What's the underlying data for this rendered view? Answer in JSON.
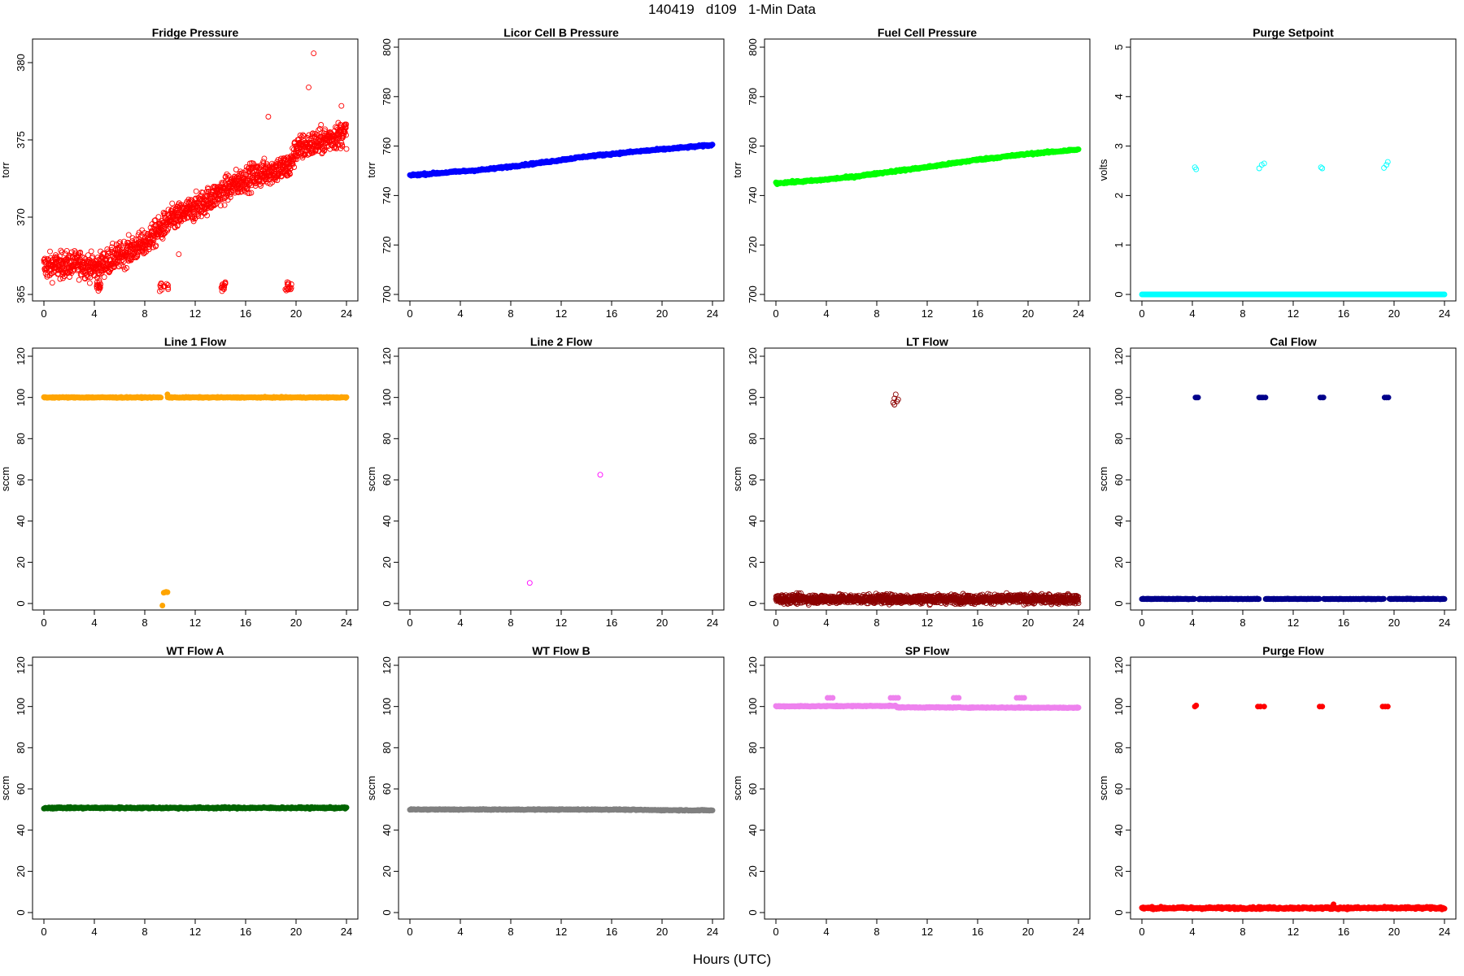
{
  "title": "140419   d109   1-Min Data",
  "xlabel": "Hours (UTC)",
  "chart_data": [
    {
      "type": "scatter",
      "title": "Fridge Pressure",
      "ylabel": "torr",
      "color": "#ff0000",
      "filled": false,
      "xlim": [
        0,
        24
      ],
      "ylim": [
        365,
        381
      ],
      "xticks": [
        0,
        4,
        8,
        12,
        16,
        20,
        24
      ],
      "yticks": [
        365,
        370,
        375,
        380
      ],
      "trend": [
        [
          0,
          366.8
        ],
        [
          3,
          367.0
        ],
        [
          4,
          366.7
        ],
        [
          6,
          367.5
        ],
        [
          8,
          368.3
        ],
        [
          10,
          369.8
        ],
        [
          12,
          370.6
        ],
        [
          14,
          371.6
        ],
        [
          16,
          372.5
        ],
        [
          18,
          373.0
        ],
        [
          19.5,
          373.3
        ],
        [
          20,
          374.4
        ],
        [
          22,
          374.9
        ],
        [
          24,
          375.5
        ]
      ],
      "spread": 1.1,
      "bursts": [
        {
          "x": [
            4.1,
            4.5
          ],
          "y": [
            365.2,
            365.8
          ]
        },
        {
          "x": [
            9.1,
            9.9
          ],
          "y": [
            365.2,
            365.8
          ]
        },
        {
          "x": [
            14.0,
            14.4
          ],
          "y": [
            365.2,
            365.8
          ]
        },
        {
          "x": [
            19.1,
            19.7
          ],
          "y": [
            365.2,
            365.8
          ]
        }
      ],
      "outliers": [
        [
          21.4,
          380.6
        ],
        [
          21.0,
          378.4
        ],
        [
          17.8,
          376.5
        ],
        [
          10.7,
          367.6
        ],
        [
          23.6,
          377.2
        ]
      ]
    },
    {
      "type": "scatter",
      "title": "Licor Cell B Pressure",
      "ylabel": "torr",
      "color": "#0000ff",
      "filled": true,
      "xlim": [
        0,
        24
      ],
      "ylim": [
        700,
        800
      ],
      "xticks": [
        0,
        4,
        8,
        12,
        16,
        20,
        24
      ],
      "yticks": [
        700,
        720,
        740,
        760,
        780,
        800
      ],
      "trend": [
        [
          0,
          748.2
        ],
        [
          6,
          750.5
        ],
        [
          10,
          753.0
        ],
        [
          14,
          755.8
        ],
        [
          18,
          757.8
        ],
        [
          24,
          760.4
        ]
      ],
      "spread": 0.5
    },
    {
      "type": "scatter",
      "title": "Fuel Cell Pressure",
      "ylabel": "torr",
      "color": "#00ff00",
      "filled": true,
      "xlim": [
        0,
        24
      ],
      "ylim": [
        700,
        800
      ],
      "xticks": [
        0,
        4,
        8,
        12,
        16,
        20,
        24
      ],
      "yticks": [
        700,
        720,
        740,
        760,
        780,
        800
      ],
      "trend": [
        [
          0,
          745.0
        ],
        [
          3,
          746.0
        ],
        [
          6,
          747.5
        ],
        [
          9,
          749.6
        ],
        [
          12,
          751.5
        ],
        [
          16,
          754.5
        ],
        [
          20,
          756.8
        ],
        [
          24,
          758.6
        ]
      ],
      "spread": 0.5
    },
    {
      "type": "scatter",
      "title": "Purge Setpoint",
      "ylabel": "volts",
      "color": "#00ffff",
      "filled": false,
      "xlim": [
        0,
        24
      ],
      "ylim": [
        0,
        5
      ],
      "xticks": [
        0,
        4,
        8,
        12,
        16,
        20,
        24
      ],
      "yticks": [
        0,
        1,
        2,
        3,
        4,
        5
      ],
      "baseline": 0.0,
      "spread": 0.0,
      "clusters": [
        [
          4.2,
          2.57
        ],
        [
          4.3,
          2.53
        ],
        [
          9.3,
          2.55
        ],
        [
          9.5,
          2.62
        ],
        [
          9.7,
          2.65
        ],
        [
          14.2,
          2.57
        ],
        [
          14.3,
          2.55
        ],
        [
          19.2,
          2.56
        ],
        [
          19.4,
          2.62
        ],
        [
          19.5,
          2.68
        ]
      ]
    },
    {
      "type": "scatter",
      "title": "Line 1 Flow",
      "ylabel": "sccm",
      "color": "#ffa500",
      "filled": true,
      "xlim": [
        0,
        24
      ],
      "ylim": [
        0,
        120
      ],
      "xticks": [
        0,
        4,
        8,
        12,
        16,
        20,
        24
      ],
      "yticks": [
        0,
        20,
        40,
        60,
        80,
        100,
        120
      ],
      "baseline": 100.0,
      "spread": 0.3,
      "gaps": [
        [
          9.3,
          9.8
        ]
      ],
      "clusters": [
        [
          9.5,
          5.2
        ],
        [
          9.6,
          5.4
        ],
        [
          9.7,
          5.6
        ],
        [
          9.8,
          5.5
        ],
        [
          9.4,
          -1.0
        ],
        [
          9.8,
          101.5
        ]
      ]
    },
    {
      "type": "scatter",
      "title": "Line 2 Flow",
      "ylabel": "sccm",
      "color": "#ff00ff",
      "filled": false,
      "xlim": [
        0,
        24
      ],
      "ylim": [
        0,
        120
      ],
      "xticks": [
        0,
        4,
        8,
        12,
        16,
        20,
        24
      ],
      "yticks": [
        0,
        20,
        40,
        60,
        80,
        100,
        120
      ],
      "clusters": [
        [
          9.5,
          10.0
        ],
        [
          15.1,
          62.5
        ]
      ]
    },
    {
      "type": "scatter",
      "title": "LT Flow",
      "ylabel": "sccm",
      "color": "#8b0000",
      "filled": false,
      "xlim": [
        0,
        24
      ],
      "ylim": [
        0,
        120
      ],
      "xticks": [
        0,
        4,
        8,
        12,
        16,
        20,
        24
      ],
      "yticks": [
        0,
        20,
        40,
        60,
        80,
        100,
        120
      ],
      "baseline": 2.2,
      "spread": 2.8,
      "clusters": [
        [
          9.3,
          97.5
        ],
        [
          9.4,
          99.5
        ],
        [
          9.5,
          101.5
        ],
        [
          9.6,
          98.0
        ],
        [
          9.7,
          99.0
        ],
        [
          9.4,
          96.5
        ]
      ]
    },
    {
      "type": "scatter",
      "title": "Cal Flow",
      "ylabel": "sccm",
      "color": "#00008b",
      "filled": true,
      "xlim": [
        0,
        24
      ],
      "ylim": [
        0,
        120
      ],
      "xticks": [
        0,
        4,
        8,
        12,
        16,
        20,
        24
      ],
      "yticks": [
        0,
        20,
        40,
        60,
        80,
        100,
        120
      ],
      "baseline": 2.2,
      "spread": 0.2,
      "gaps": [
        [
          4.2,
          4.5
        ],
        [
          9.3,
          9.8
        ],
        [
          14.1,
          14.4
        ],
        [
          19.2,
          19.6
        ]
      ],
      "clusters": [
        [
          4.25,
          100
        ],
        [
          4.35,
          100
        ],
        [
          4.45,
          100
        ],
        [
          9.3,
          100
        ],
        [
          9.45,
          100
        ],
        [
          9.6,
          100
        ],
        [
          9.8,
          100
        ],
        [
          14.15,
          100
        ],
        [
          14.3,
          100
        ],
        [
          14.4,
          100
        ],
        [
          19.25,
          100
        ],
        [
          19.4,
          100
        ],
        [
          19.55,
          100
        ]
      ]
    },
    {
      "type": "scatter",
      "title": "WT Flow A",
      "ylabel": "sccm",
      "color": "#006400",
      "filled": true,
      "xlim": [
        0,
        24
      ],
      "ylim": [
        0,
        120
      ],
      "xticks": [
        0,
        4,
        8,
        12,
        16,
        20,
        24
      ],
      "yticks": [
        0,
        20,
        40,
        60,
        80,
        100,
        120
      ],
      "baseline": 50.8,
      "spread": 0.5
    },
    {
      "type": "scatter",
      "title": "WT Flow B",
      "ylabel": "sccm",
      "color": "#808080",
      "filled": true,
      "xlim": [
        0,
        24
      ],
      "ylim": [
        0,
        120
      ],
      "xticks": [
        0,
        4,
        8,
        12,
        16,
        20,
        24
      ],
      "yticks": [
        0,
        20,
        40,
        60,
        80,
        100,
        120
      ],
      "trend": [
        [
          0,
          50.0
        ],
        [
          16,
          50.0
        ],
        [
          20,
          49.7
        ],
        [
          24,
          49.6
        ]
      ],
      "spread": 0.3
    },
    {
      "type": "scatter",
      "title": "SP Flow",
      "ylabel": "sccm",
      "color": "#ee82ee",
      "filled": true,
      "xlim": [
        0,
        24
      ],
      "ylim": [
        0,
        120
      ],
      "xticks": [
        0,
        4,
        8,
        12,
        16,
        20,
        24
      ],
      "yticks": [
        0,
        20,
        40,
        60,
        80,
        100,
        120
      ],
      "trend": [
        [
          0,
          100.1
        ],
        [
          9.5,
          100.3
        ],
        [
          9.6,
          99.6
        ],
        [
          24,
          99.4
        ]
      ],
      "spread": 0.3,
      "clusters": [
        [
          4.1,
          104.2
        ],
        [
          4.3,
          104.2
        ],
        [
          4.5,
          104.2
        ],
        [
          9.1,
          104.2
        ],
        [
          9.3,
          104.2
        ],
        [
          9.5,
          104.2
        ],
        [
          9.7,
          104.2
        ],
        [
          14.1,
          104.2
        ],
        [
          14.3,
          104.2
        ],
        [
          14.5,
          104.2
        ],
        [
          19.1,
          104.2
        ],
        [
          19.3,
          104.2
        ],
        [
          19.5,
          104.2
        ],
        [
          19.7,
          104.2
        ]
      ]
    },
    {
      "type": "scatter",
      "title": "Purge Flow",
      "ylabel": "sccm",
      "color": "#ff0000",
      "filled": true,
      "xlim": [
        0,
        24
      ],
      "ylim": [
        0,
        120
      ],
      "xticks": [
        0,
        4,
        8,
        12,
        16,
        20,
        24
      ],
      "yticks": [
        0,
        20,
        40,
        60,
        80,
        100,
        120
      ],
      "baseline": 2.2,
      "spread": 0.7,
      "clusters": [
        [
          4.2,
          100
        ],
        [
          4.3,
          100.5
        ],
        [
          9.2,
          100
        ],
        [
          9.4,
          100
        ],
        [
          9.7,
          100
        ],
        [
          14.1,
          100
        ],
        [
          14.3,
          100
        ],
        [
          19.1,
          100
        ],
        [
          19.3,
          100
        ],
        [
          19.5,
          100
        ],
        [
          15.2,
          4.0
        ]
      ]
    }
  ]
}
